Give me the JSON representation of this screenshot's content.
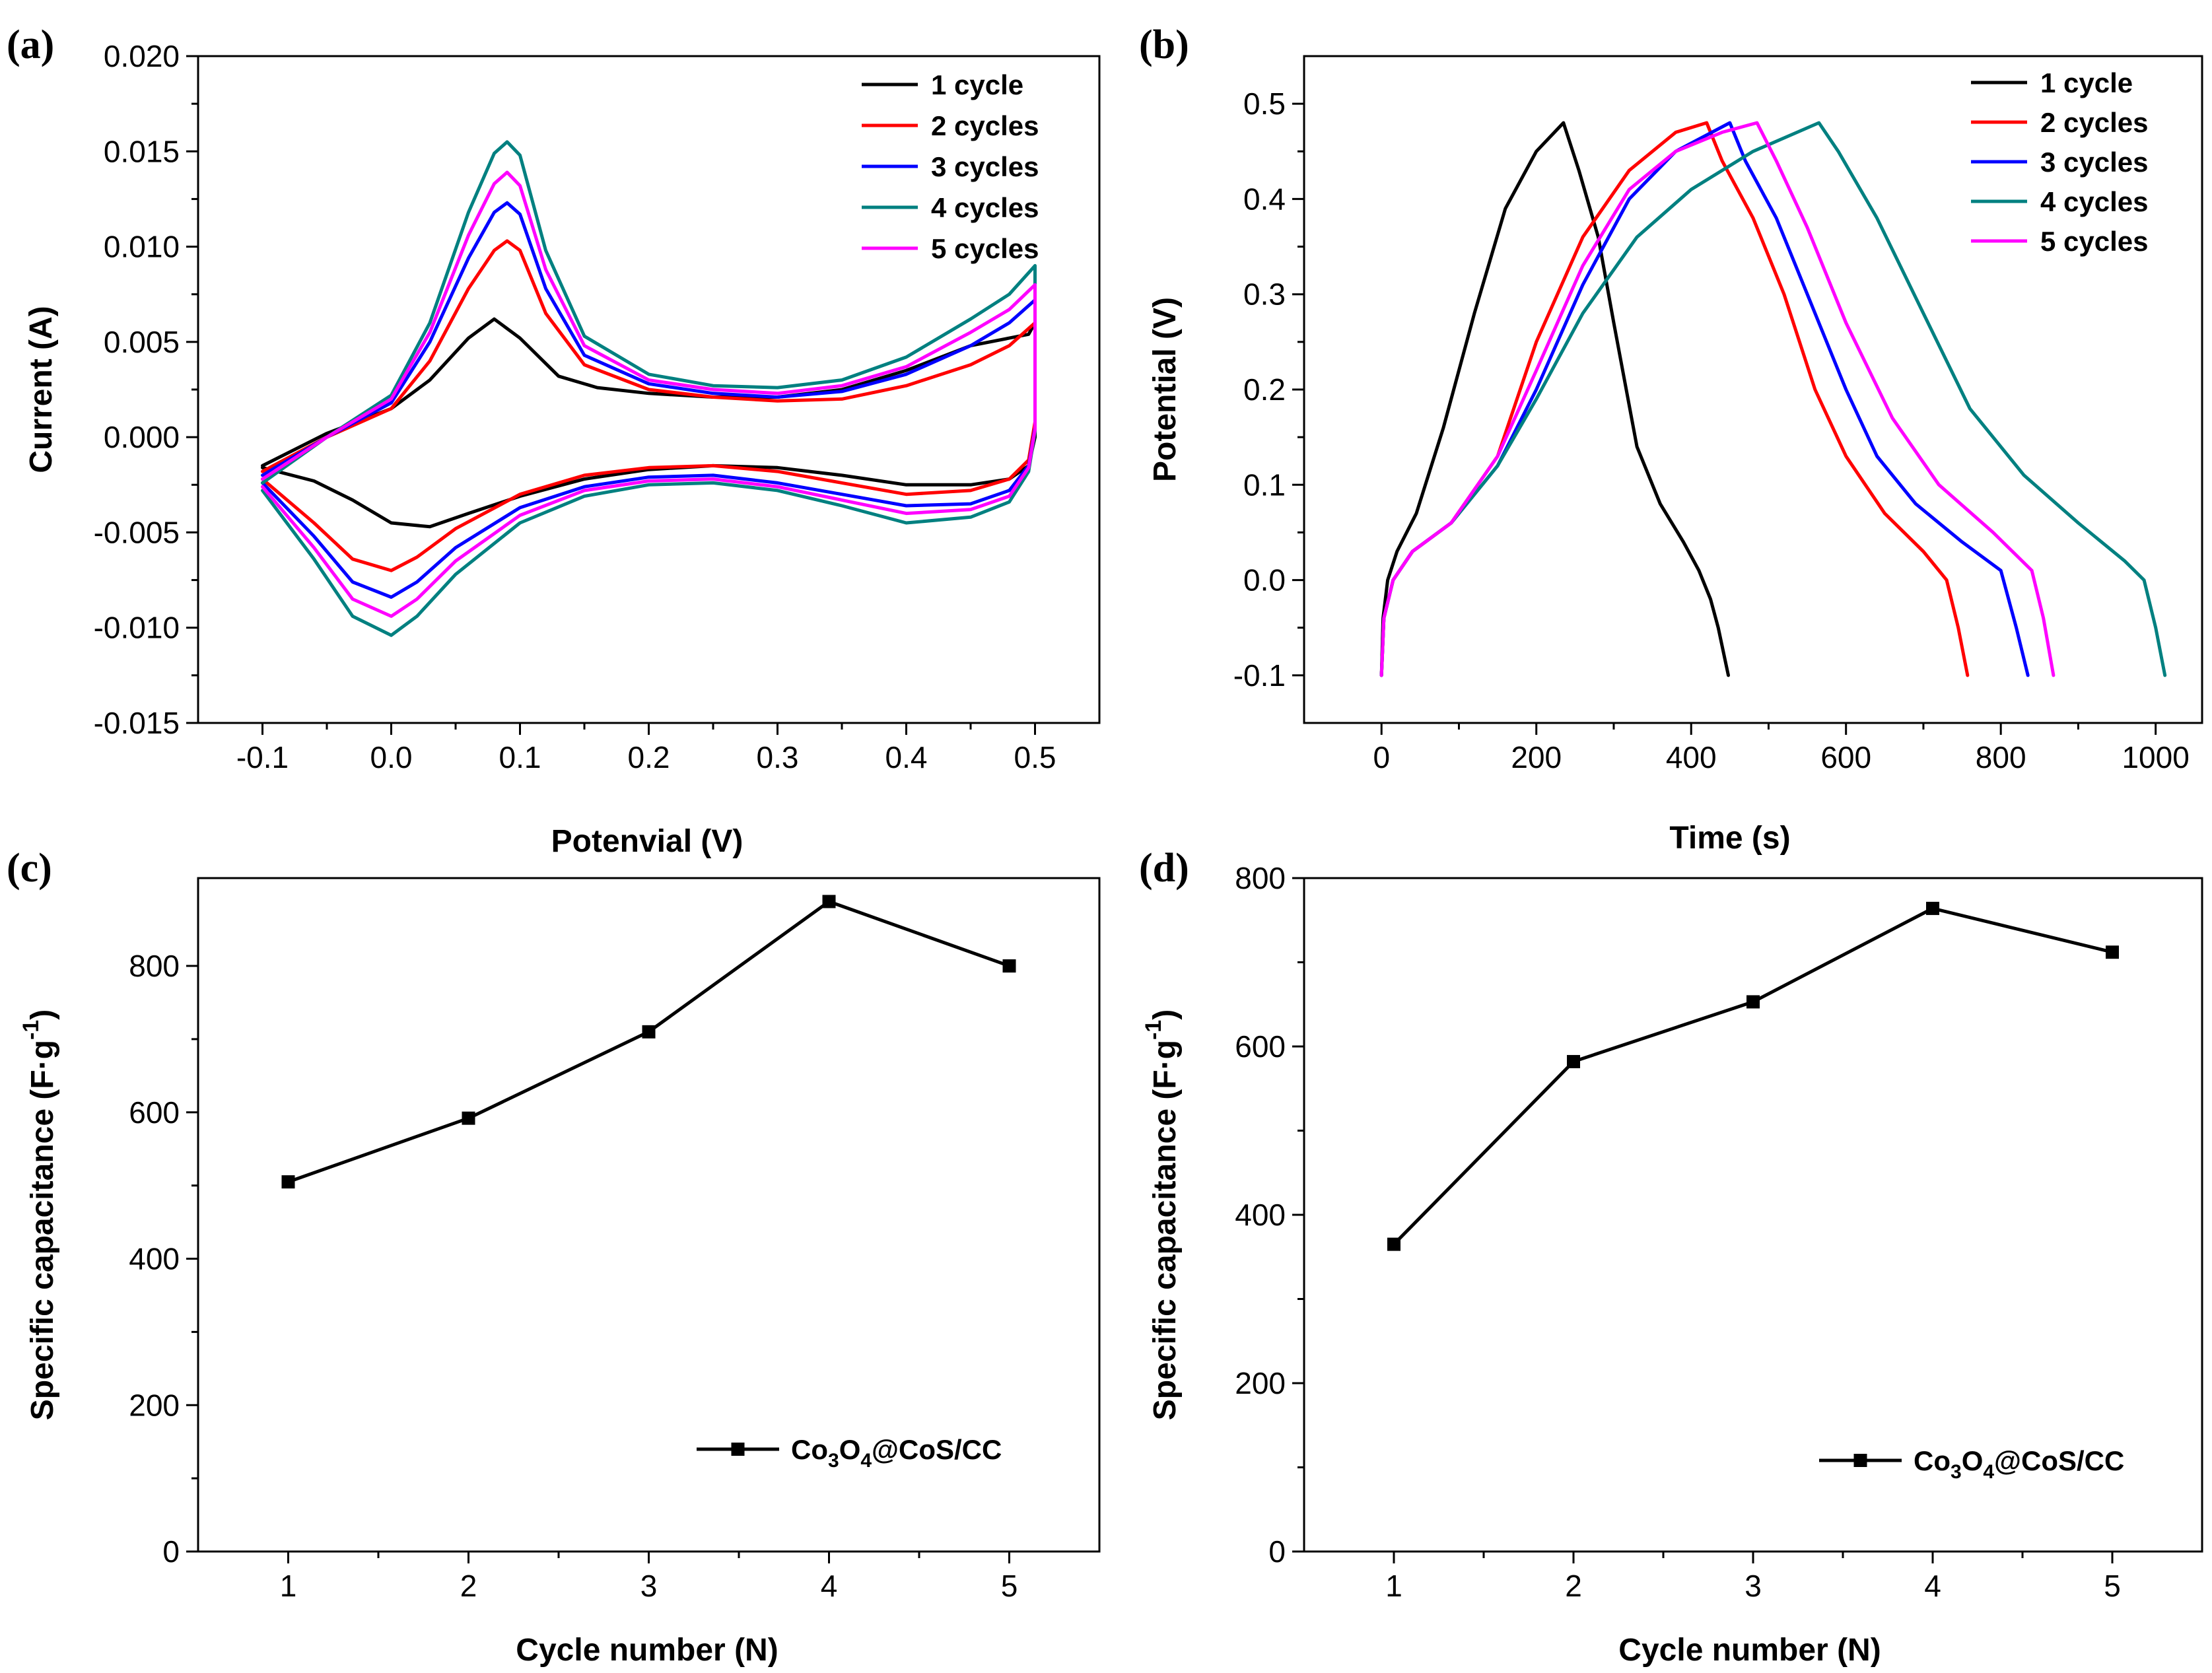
{
  "chart_data": [
    {
      "type": "line",
      "panel_label": "(a)",
      "xlabel": "Potenvial (V)",
      "ylabel": "Current (A)",
      "xlim": [
        -0.15,
        0.55
      ],
      "ylim": [
        -0.015,
        0.02
      ],
      "xticks": [
        -0.1,
        0.0,
        0.1,
        0.2,
        0.3,
        0.4,
        0.5
      ],
      "xtick_labels": [
        "-0.1",
        "0.0",
        "0.1",
        "0.2",
        "0.3",
        "0.4",
        "0.5"
      ],
      "yticks": [
        -0.015,
        -0.01,
        -0.005,
        0.0,
        0.005,
        0.01,
        0.015,
        0.02
      ],
      "ytick_labels": [
        "-0.015",
        "-0.010",
        "-0.005",
        "0.000",
        "0.005",
        "0.010",
        "0.015",
        "0.020"
      ],
      "legend_position": "top-right",
      "series": [
        {
          "name": "1 cycle",
          "color": "#000000",
          "x": [
            -0.1,
            -0.05,
            0.0,
            0.03,
            0.06,
            0.08,
            0.1,
            0.13,
            0.16,
            0.2,
            0.25,
            0.3,
            0.35,
            0.4,
            0.45,
            0.48,
            0.495,
            0.5,
            0.5,
            0.495,
            0.48,
            0.45,
            0.4,
            0.35,
            0.3,
            0.25,
            0.2,
            0.15,
            0.1,
            0.06,
            0.03,
            0.0,
            -0.03,
            -0.06,
            -0.1
          ],
          "y": [
            -0.0015,
            0.0002,
            0.0015,
            0.003,
            0.0052,
            0.0062,
            0.0052,
            0.0032,
            0.0026,
            0.0023,
            0.0021,
            0.0021,
            0.0025,
            0.0035,
            0.0048,
            0.0052,
            0.0054,
            0.006,
            0.0,
            -0.0015,
            -0.0022,
            -0.0025,
            -0.0025,
            -0.002,
            -0.0016,
            -0.0015,
            -0.0017,
            -0.0022,
            -0.0031,
            -0.004,
            -0.0047,
            -0.0045,
            -0.0033,
            -0.0023,
            -0.0016
          ]
        },
        {
          "name": "2 cycles",
          "color": "#ff0000",
          "x": [
            -0.1,
            -0.05,
            0.0,
            0.03,
            0.06,
            0.08,
            0.09,
            0.1,
            0.12,
            0.15,
            0.2,
            0.25,
            0.3,
            0.35,
            0.4,
            0.45,
            0.48,
            0.5,
            0.5,
            0.495,
            0.48,
            0.45,
            0.4,
            0.35,
            0.3,
            0.25,
            0.2,
            0.15,
            0.1,
            0.05,
            0.02,
            0.0,
            -0.03,
            -0.06,
            -0.1
          ],
          "y": [
            -0.0018,
            0.0,
            0.0015,
            0.004,
            0.0078,
            0.0098,
            0.0103,
            0.0098,
            0.0065,
            0.0038,
            0.0025,
            0.0021,
            0.0019,
            0.002,
            0.0027,
            0.0038,
            0.0048,
            0.006,
            0.0008,
            -0.0012,
            -0.0022,
            -0.0028,
            -0.003,
            -0.0024,
            -0.0018,
            -0.0015,
            -0.0016,
            -0.002,
            -0.003,
            -0.0048,
            -0.0063,
            -0.007,
            -0.0064,
            -0.0045,
            -0.0022
          ]
        },
        {
          "name": "3 cycles",
          "color": "#0000ff",
          "x": [
            -0.1,
            -0.05,
            0.0,
            0.03,
            0.06,
            0.08,
            0.09,
            0.1,
            0.12,
            0.15,
            0.2,
            0.25,
            0.3,
            0.35,
            0.4,
            0.45,
            0.48,
            0.5,
            0.5,
            0.495,
            0.48,
            0.45,
            0.4,
            0.35,
            0.3,
            0.25,
            0.2,
            0.15,
            0.1,
            0.05,
            0.02,
            0.0,
            -0.03,
            -0.06,
            -0.1
          ],
          "y": [
            -0.002,
            0.0,
            0.0018,
            0.005,
            0.0094,
            0.0118,
            0.0123,
            0.0117,
            0.0078,
            0.0043,
            0.0028,
            0.0023,
            0.0021,
            0.0024,
            0.0033,
            0.0048,
            0.006,
            0.0072,
            0.0005,
            -0.0015,
            -0.0028,
            -0.0035,
            -0.0036,
            -0.003,
            -0.0024,
            -0.002,
            -0.0021,
            -0.0026,
            -0.0037,
            -0.0058,
            -0.0076,
            -0.0084,
            -0.0076,
            -0.0052,
            -0.0024
          ]
        },
        {
          "name": "4 cycles",
          "color": "#008080",
          "x": [
            -0.1,
            -0.05,
            0.0,
            0.03,
            0.06,
            0.08,
            0.09,
            0.1,
            0.12,
            0.15,
            0.2,
            0.25,
            0.3,
            0.35,
            0.4,
            0.45,
            0.48,
            0.5,
            0.5,
            0.495,
            0.48,
            0.45,
            0.4,
            0.35,
            0.3,
            0.25,
            0.2,
            0.15,
            0.1,
            0.05,
            0.02,
            0.0,
            -0.03,
            -0.06,
            -0.1
          ],
          "y": [
            -0.0024,
            0.0,
            0.0022,
            0.006,
            0.0118,
            0.0149,
            0.0155,
            0.0148,
            0.0098,
            0.0053,
            0.0033,
            0.0027,
            0.0026,
            0.003,
            0.0042,
            0.0062,
            0.0075,
            0.009,
            0.0003,
            -0.0018,
            -0.0034,
            -0.0042,
            -0.0045,
            -0.0036,
            -0.0028,
            -0.0024,
            -0.0025,
            -0.0031,
            -0.0045,
            -0.0072,
            -0.0094,
            -0.0104,
            -0.0094,
            -0.0064,
            -0.0028
          ]
        },
        {
          "name": "5 cycles",
          "color": "#ff00ff",
          "x": [
            -0.1,
            -0.05,
            0.0,
            0.03,
            0.06,
            0.08,
            0.09,
            0.1,
            0.12,
            0.15,
            0.2,
            0.25,
            0.3,
            0.35,
            0.4,
            0.45,
            0.48,
            0.5,
            0.5,
            0.495,
            0.48,
            0.45,
            0.4,
            0.35,
            0.3,
            0.25,
            0.2,
            0.15,
            0.1,
            0.05,
            0.02,
            0.0,
            -0.03,
            -0.06,
            -0.1
          ],
          "y": [
            -0.0022,
            0.0,
            0.002,
            0.0055,
            0.0106,
            0.0133,
            0.0139,
            0.0132,
            0.0088,
            0.0048,
            0.003,
            0.0025,
            0.0023,
            0.0027,
            0.0037,
            0.0055,
            0.0067,
            0.008,
            0.0004,
            -0.0016,
            -0.0031,
            -0.0038,
            -0.004,
            -0.0033,
            -0.0026,
            -0.0022,
            -0.0023,
            -0.0028,
            -0.0041,
            -0.0065,
            -0.0085,
            -0.0094,
            -0.0085,
            -0.0058,
            -0.0026
          ]
        }
      ]
    },
    {
      "type": "line",
      "panel_label": "(b)",
      "xlabel": "Time (s)",
      "ylabel": "Potential (V)",
      "xlim": [
        -100,
        1060
      ],
      "ylim": [
        -0.15,
        0.55
      ],
      "xticks": [
        0,
        200,
        400,
        600,
        800,
        1000
      ],
      "xtick_labels": [
        "0",
        "200",
        "400",
        "600",
        "800",
        "1000"
      ],
      "yticks": [
        -0.1,
        0.0,
        0.1,
        0.2,
        0.3,
        0.4,
        0.5
      ],
      "ytick_labels": [
        "-0.1",
        "0.0",
        "0.1",
        "0.2",
        "0.3",
        "0.4",
        "0.5"
      ],
      "legend_position": "top-right",
      "series": [
        {
          "name": "1 cycle",
          "color": "#000000",
          "x": [
            0,
            2,
            8,
            20,
            45,
            80,
            120,
            160,
            200,
            235,
            255,
            280,
            300,
            330,
            360,
            390,
            410,
            425,
            435,
            448
          ],
          "y": [
            -0.1,
            -0.04,
            0.0,
            0.03,
            0.07,
            0.16,
            0.28,
            0.39,
            0.45,
            0.48,
            0.43,
            0.36,
            0.27,
            0.14,
            0.08,
            0.04,
            0.01,
            -0.02,
            -0.05,
            -0.1
          ]
        },
        {
          "name": "2 cycles",
          "color": "#ff0000",
          "x": [
            0,
            3,
            15,
            40,
            90,
            150,
            200,
            260,
            320,
            380,
            420,
            440,
            480,
            520,
            560,
            600,
            650,
            700,
            730,
            745,
            757
          ],
          "y": [
            -0.1,
            -0.04,
            0.0,
            0.03,
            0.06,
            0.13,
            0.25,
            0.36,
            0.43,
            0.47,
            0.48,
            0.44,
            0.38,
            0.3,
            0.2,
            0.13,
            0.07,
            0.03,
            0.0,
            -0.05,
            -0.1
          ]
        },
        {
          "name": "3 cycles",
          "color": "#0000ff",
          "x": [
            0,
            3,
            15,
            40,
            90,
            150,
            200,
            260,
            320,
            380,
            450,
            470,
            510,
            550,
            600,
            640,
            690,
            750,
            800,
            820,
            835
          ],
          "y": [
            -0.1,
            -0.04,
            0.0,
            0.03,
            0.06,
            0.12,
            0.2,
            0.31,
            0.4,
            0.45,
            0.48,
            0.44,
            0.38,
            0.3,
            0.2,
            0.13,
            0.08,
            0.04,
            0.01,
            -0.05,
            -0.1
          ]
        },
        {
          "name": "4 cycles",
          "color": "#008080",
          "x": [
            0,
            3,
            15,
            40,
            90,
            150,
            200,
            260,
            330,
            400,
            480,
            565,
            590,
            640,
            700,
            760,
            830,
            900,
            960,
            985,
            1000,
            1012
          ],
          "y": [
            -0.1,
            -0.04,
            0.0,
            0.03,
            0.06,
            0.12,
            0.19,
            0.28,
            0.36,
            0.41,
            0.45,
            0.48,
            0.45,
            0.38,
            0.28,
            0.18,
            0.11,
            0.06,
            0.02,
            0.0,
            -0.05,
            -0.1
          ]
        },
        {
          "name": "5 cycles",
          "color": "#ff00ff",
          "x": [
            0,
            3,
            15,
            40,
            90,
            150,
            200,
            260,
            320,
            380,
            440,
            485,
            510,
            550,
            600,
            660,
            720,
            790,
            840,
            855,
            868
          ],
          "y": [
            -0.1,
            -0.04,
            0.0,
            0.03,
            0.06,
            0.13,
            0.22,
            0.33,
            0.41,
            0.45,
            0.47,
            0.48,
            0.44,
            0.37,
            0.27,
            0.17,
            0.1,
            0.05,
            0.01,
            -0.04,
            -0.1
          ]
        }
      ]
    },
    {
      "type": "line",
      "panel_label": "(c)",
      "xlabel": "Cycle number (N)",
      "ylabel": "Specific capacitance (F·g",
      "ylabel_sup": "-1",
      "ylabel_tail": ")",
      "xlim": [
        0.5,
        5.5
      ],
      "ylim": [
        0,
        920
      ],
      "xticks": [
        1,
        2,
        3,
        4,
        5
      ],
      "xtick_labels": [
        "1",
        "2",
        "3",
        "4",
        "5"
      ],
      "yticks": [
        0,
        200,
        400,
        600,
        800
      ],
      "ytick_labels": [
        "0",
        "200",
        "400",
        "600",
        "800"
      ],
      "legend_position": "bottom-right",
      "series": [
        {
          "name": "Co3O4@CoS/CC",
          "name_parts": [
            "Co",
            "3",
            "O",
            "4",
            "@CoS/CC"
          ],
          "color": "#000000",
          "marker": "square",
          "x": [
            1,
            2,
            3,
            4,
            5
          ],
          "y": [
            505,
            592,
            710,
            888,
            800
          ]
        }
      ]
    },
    {
      "type": "line",
      "panel_label": "(d)",
      "xlabel": "Cycle number (N)",
      "ylabel": "Specific capacitance (F·g",
      "ylabel_sup": "-1",
      "ylabel_tail": ")",
      "xlim": [
        0.5,
        5.5
      ],
      "ylim": [
        0,
        800
      ],
      "xticks": [
        1,
        2,
        3,
        4,
        5
      ],
      "xtick_labels": [
        "1",
        "2",
        "3",
        "4",
        "5"
      ],
      "yticks": [
        0,
        200,
        400,
        600,
        800
      ],
      "ytick_labels": [
        "0",
        "200",
        "400",
        "600",
        "800"
      ],
      "legend_position": "bottom-right",
      "series": [
        {
          "name": "Co3O4@CoS/CC",
          "name_parts": [
            "Co",
            "3",
            "O",
            "4",
            "@CoS/CC"
          ],
          "color": "#000000",
          "marker": "square",
          "x": [
            1,
            2,
            3,
            4,
            5
          ],
          "y": [
            365,
            582,
            653,
            764,
            712
          ]
        }
      ]
    }
  ]
}
